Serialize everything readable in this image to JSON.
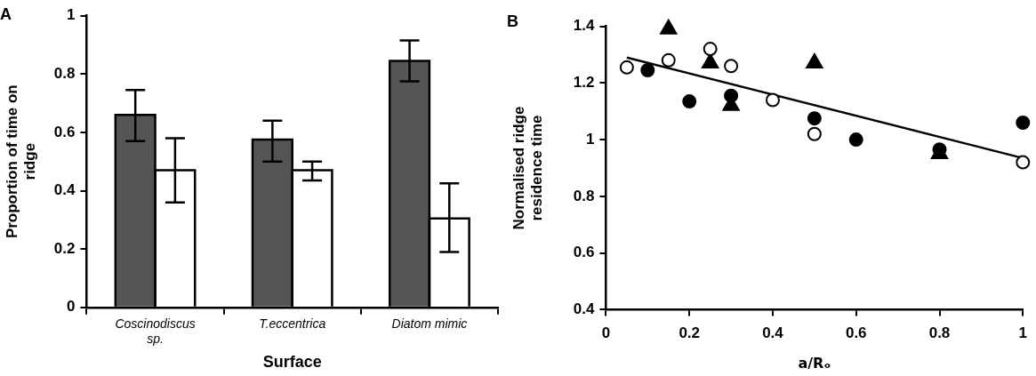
{
  "chart_data": [
    {
      "type": "bar",
      "title": "A",
      "xlabel": "Surface",
      "ylabel": "Proportion of time on ridge",
      "categories": [
        "Coscinodiscus sp.",
        "T.eccentrica",
        "Diatom mimic"
      ],
      "ylim": [
        0,
        1
      ],
      "yticks": [
        0,
        0.2,
        0.4,
        0.6,
        0.8,
        1
      ],
      "grid": false,
      "legend": false,
      "series": [
        {
          "color": "#555555",
          "values": [
            0.66,
            0.575,
            0.845
          ],
          "errors": [
            [
              0.57,
              0.745
            ],
            [
              0.5,
              0.64
            ],
            [
              0.775,
              0.915
            ]
          ]
        },
        {
          "color": "#ffffff",
          "values": [
            0.47,
            0.47,
            0.305
          ],
          "errors": [
            [
              0.36,
              0.58
            ],
            [
              0.435,
              0.5
            ],
            [
              0.19,
              0.425
            ]
          ]
        }
      ]
    },
    {
      "type": "scatter",
      "title": "B",
      "xlabel": "a/Rₒ",
      "ylabel": "Normalised ridge residence time",
      "xlim": [
        0,
        1
      ],
      "xticks": [
        0,
        0.2,
        0.4,
        0.6,
        0.8,
        1
      ],
      "ylim": [
        0.4,
        1.4
      ],
      "yticks": [
        0.4,
        0.6,
        0.8,
        1,
        1.2,
        1.4
      ],
      "grid": false,
      "legend": false,
      "series": [
        {
          "color": "#000000",
          "marker": "circle",
          "x": [
            0.1,
            0.2,
            0.3,
            0.5,
            0.6,
            0.8,
            1.0
          ],
          "values": [
            1.245,
            1.135,
            1.155,
            1.075,
            1.0,
            0.965,
            1.06
          ]
        },
        {
          "color": "#ffffff",
          "marker": "circle",
          "x": [
            0.05,
            0.15,
            0.25,
            0.3,
            0.4,
            0.5,
            1.0
          ],
          "values": [
            1.255,
            1.28,
            1.32,
            1.26,
            1.14,
            1.02,
            0.92
          ]
        },
        {
          "color": "#000000",
          "marker": "triangle",
          "x": [
            0.15,
            0.25,
            0.3,
            0.5,
            0.8
          ],
          "values": [
            1.39,
            1.27,
            1.12,
            1.27,
            0.95
          ]
        },
        {
          "type": "line",
          "color": "#000000",
          "marker": "none",
          "x": [
            0.05,
            1.0
          ],
          "values": [
            1.29,
            0.935
          ]
        }
      ]
    }
  ]
}
